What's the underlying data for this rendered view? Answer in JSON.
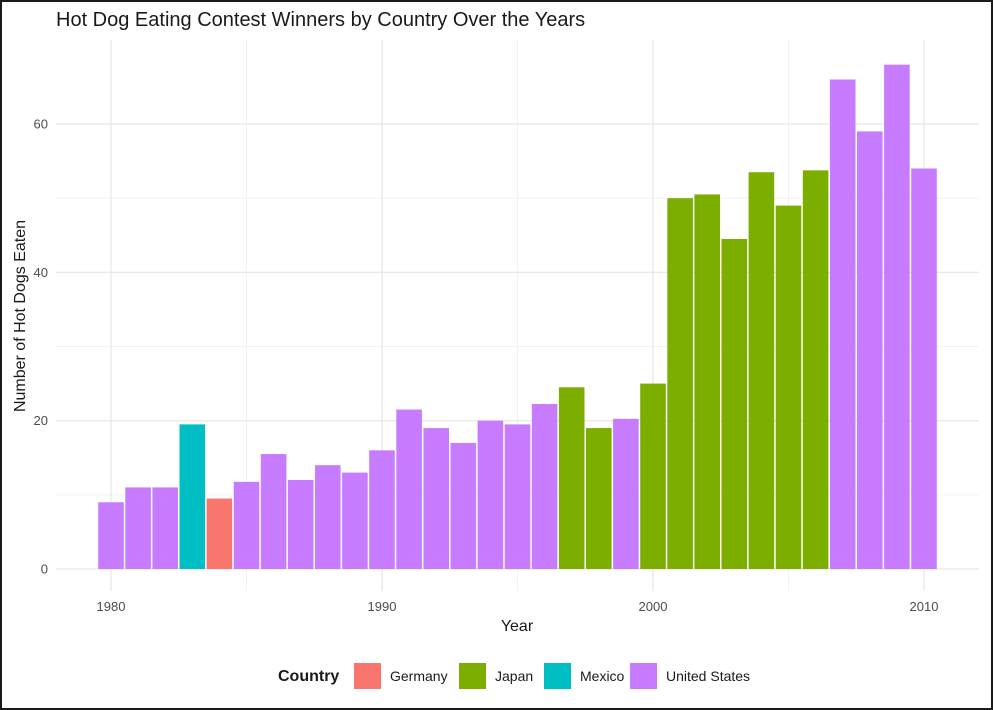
{
  "chart_data": {
    "type": "bar",
    "title": "Hot Dog Eating Contest Winners by Country Over the Years",
    "xlabel": "Year",
    "ylabel": "Number of Hot Dogs Eaten",
    "xlim": [
      1977.5,
      2011
    ],
    "ylim": [
      0,
      70
    ],
    "x_ticks": [
      1980,
      1990,
      2000,
      2010
    ],
    "y_ticks": [
      0,
      20,
      40,
      60
    ],
    "grid": true,
    "legend": {
      "title": "Country",
      "position": "bottom",
      "entries": [
        {
          "name": "Germany",
          "color": "#F8766D"
        },
        {
          "name": "Japan",
          "color": "#7CAE00"
        },
        {
          "name": "Mexico",
          "color": "#00BFC4"
        },
        {
          "name": "United States",
          "color": "#C77CFF"
        }
      ]
    },
    "bars": [
      {
        "year": 1980,
        "value": 9,
        "country": "United States"
      },
      {
        "year": 1981,
        "value": 11,
        "country": "United States"
      },
      {
        "year": 1982,
        "value": 11,
        "country": "United States"
      },
      {
        "year": 1983,
        "value": 19.5,
        "country": "Mexico"
      },
      {
        "year": 1984,
        "value": 9.5,
        "country": "Germany"
      },
      {
        "year": 1985,
        "value": 11.75,
        "country": "United States"
      },
      {
        "year": 1986,
        "value": 15.5,
        "country": "United States"
      },
      {
        "year": 1987,
        "value": 12,
        "country": "United States"
      },
      {
        "year": 1988,
        "value": 14,
        "country": "United States"
      },
      {
        "year": 1989,
        "value": 13,
        "country": "United States"
      },
      {
        "year": 1990,
        "value": 16,
        "country": "United States"
      },
      {
        "year": 1991,
        "value": 21.5,
        "country": "United States"
      },
      {
        "year": 1992,
        "value": 19,
        "country": "United States"
      },
      {
        "year": 1993,
        "value": 17,
        "country": "United States"
      },
      {
        "year": 1994,
        "value": 20,
        "country": "United States"
      },
      {
        "year": 1995,
        "value": 19.5,
        "country": "United States"
      },
      {
        "year": 1996,
        "value": 22.25,
        "country": "United States"
      },
      {
        "year": 1997,
        "value": 24.5,
        "country": "Japan"
      },
      {
        "year": 1998,
        "value": 19,
        "country": "Japan"
      },
      {
        "year": 1999,
        "value": 20.25,
        "country": "United States"
      },
      {
        "year": 2000,
        "value": 25,
        "country": "Japan"
      },
      {
        "year": 2001,
        "value": 50,
        "country": "Japan"
      },
      {
        "year": 2002,
        "value": 50.5,
        "country": "Japan"
      },
      {
        "year": 2003,
        "value": 44.5,
        "country": "Japan"
      },
      {
        "year": 2004,
        "value": 53.5,
        "country": "Japan"
      },
      {
        "year": 2005,
        "value": 49,
        "country": "Japan"
      },
      {
        "year": 2006,
        "value": 53.75,
        "country": "Japan"
      },
      {
        "year": 2007,
        "value": 66,
        "country": "United States"
      },
      {
        "year": 2008,
        "value": 59,
        "country": "United States"
      },
      {
        "year": 2009,
        "value": 68,
        "country": "United States"
      },
      {
        "year": 2010,
        "value": 54,
        "country": "United States"
      }
    ]
  }
}
